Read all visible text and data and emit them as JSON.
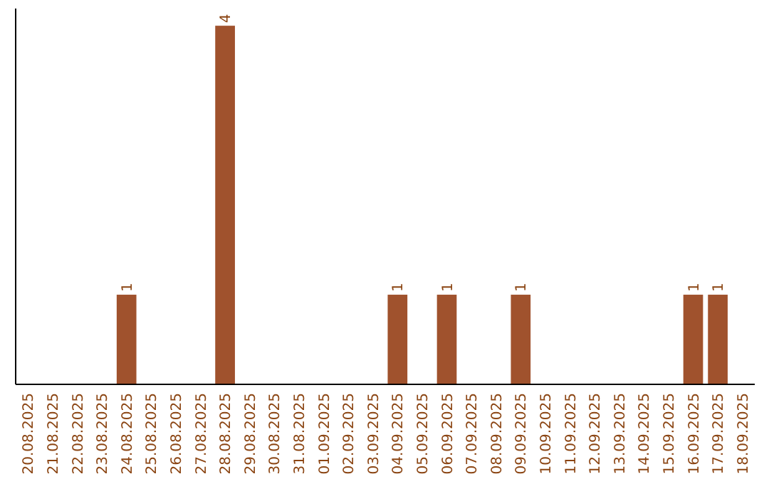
{
  "chart_data": {
    "type": "bar",
    "categories": [
      "20.08.2025",
      "21.08.2025",
      "22.08.2025",
      "23.08.2025",
      "24.08.2025",
      "25.08.2025",
      "26.08.2025",
      "27.08.2025",
      "28.08.2025",
      "29.08.2025",
      "30.08.2025",
      "31.08.2025",
      "01.09.2025",
      "02.09.2025",
      "03.09.2025",
      "04.09.2025",
      "05.09.2025",
      "06.09.2025",
      "07.09.2025",
      "08.09.2025",
      "09.09.2025",
      "10.09.2025",
      "11.09.2025",
      "12.09.2025",
      "13.09.2025",
      "14.09.2025",
      "15.09.2025",
      "16.09.2025",
      "17.09.2025",
      "18.09.2025"
    ],
    "values": [
      0,
      0,
      0,
      0,
      1,
      0,
      0,
      0,
      4,
      0,
      0,
      0,
      0,
      0,
      0,
      1,
      0,
      1,
      0,
      0,
      1,
      0,
      0,
      0,
      0,
      0,
      0,
      1,
      1,
      0
    ],
    "value_labels": [
      null,
      null,
      null,
      null,
      "1",
      null,
      null,
      null,
      "4",
      null,
      null,
      null,
      null,
      null,
      null,
      "1",
      null,
      "1",
      null,
      null,
      "1",
      null,
      null,
      null,
      null,
      null,
      null,
      "1",
      "1",
      null
    ],
    "color": "#a0522d",
    "tick_labels": "x"
  }
}
